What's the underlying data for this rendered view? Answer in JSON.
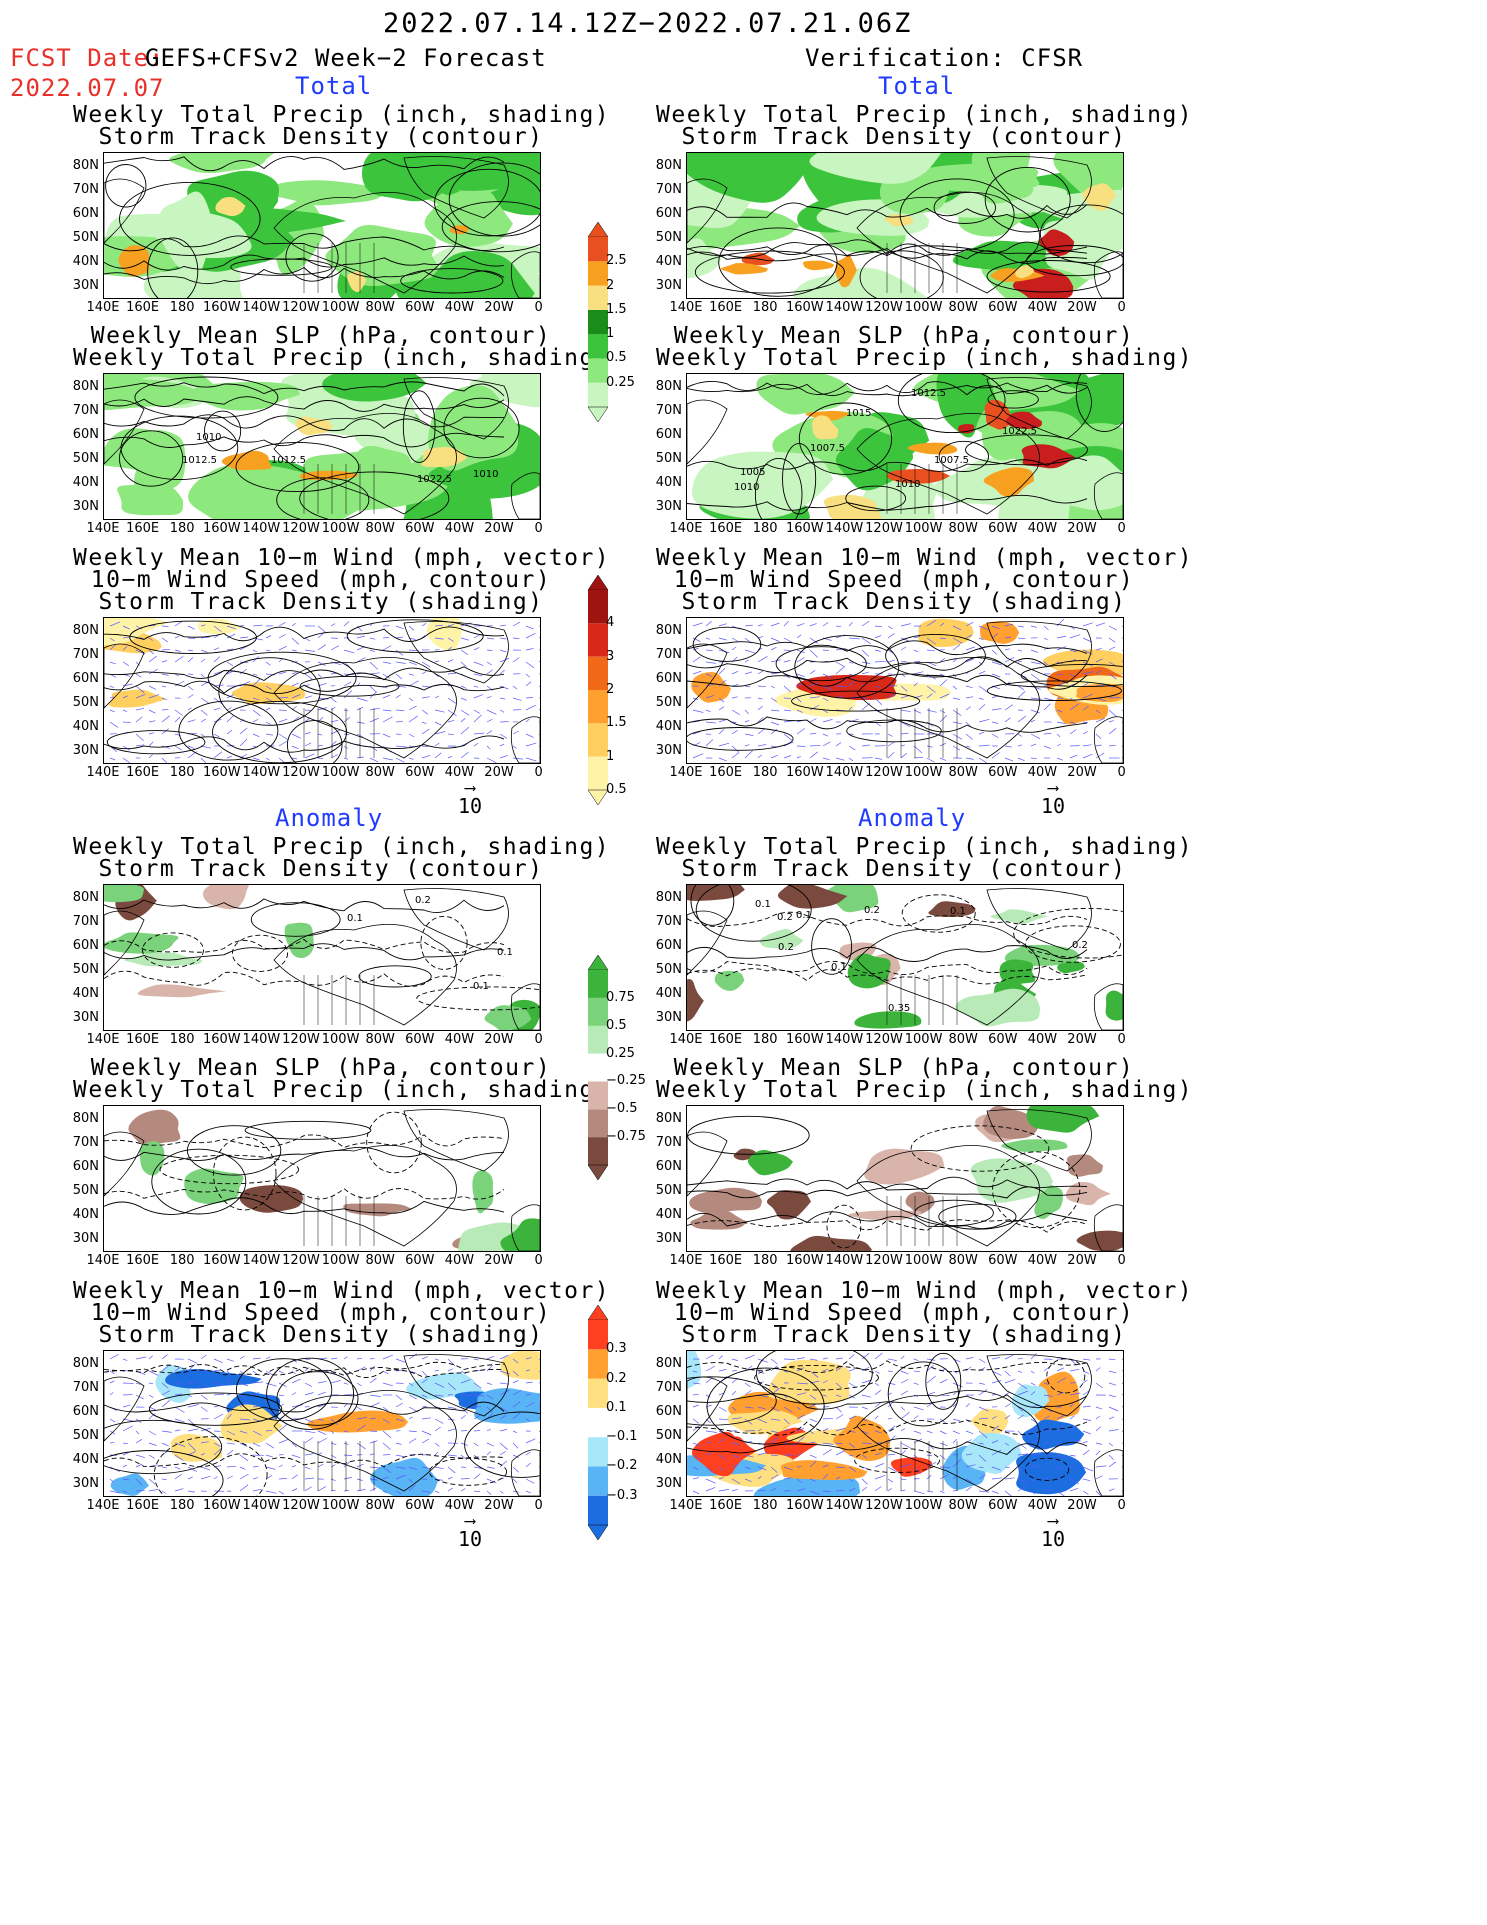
{
  "header": {
    "date_range": "2022.07.14.12Z−2022.07.21.06Z",
    "fcst_label": "FCST Date:",
    "fcst_model": "GEFS+CFSv2 Week−2 Forecast",
    "fcst_date": "2022.07.07",
    "verification": "Verification: CFSR"
  },
  "sections": {
    "total": "Total",
    "anomaly": "Anomaly"
  },
  "panel_titles": {
    "precip_storm": [
      "Weekly Total Precip (inch, shading)",
      "Storm Track Density (contour)"
    ],
    "slp_precip": [
      "Weekly Mean SLP (hPa, contour)",
      "Weekly Total Precip (inch, shading)"
    ],
    "wind_storm": [
      "Weekly Mean 10−m Wind (mph, vector)",
      "10−m Wind Speed (mph, contour)",
      "Storm Track Density (shading)"
    ]
  },
  "axes": {
    "lat": [
      "80N",
      "70N",
      "60N",
      "50N",
      "40N",
      "30N"
    ],
    "lon": [
      "140E",
      "160E",
      "180",
      "160W",
      "140W",
      "120W",
      "100W",
      "80W",
      "60W",
      "40W",
      "20W",
      "0"
    ]
  },
  "vector_ref": "10",
  "colorbars": {
    "precip_total": [
      "2.5",
      "2",
      "1.5",
      "1",
      "0.5",
      "0.25"
    ],
    "storm_total": [
      "4",
      "3",
      "2",
      "1.5",
      "1",
      "0.5"
    ],
    "precip_anom": [
      "0.75",
      "0.5",
      "0.25",
      "−0.25",
      "−0.5",
      "−0.75"
    ],
    "storm_anom": [
      "0.3",
      "0.2",
      "0.1",
      "−0.1",
      "−0.2",
      "−0.3"
    ]
  },
  "contour_labels": {
    "fc_slp_total": [
      "1010",
      "1010",
      "1012.5",
      "1012.5",
      "1022.5"
    ],
    "ob_slp_total": [
      "1010",
      "1007.5",
      "1010",
      "1005",
      "1015",
      "1007.5",
      "1012.5",
      "1022.5"
    ],
    "fc_precip_anom": [
      "0.2",
      "0.1",
      "0.1",
      "0.1"
    ],
    "ob_precip_anom": [
      "0.1",
      "0.1",
      "0.2",
      "0.1",
      "0.2",
      "0.35",
      "0.2",
      "0.1",
      "0.2"
    ]
  },
  "colors": {
    "precip": [
      "#c8f5c0",
      "#8de87d",
      "#3cc43c",
      "#198c19",
      "#f8e080",
      "#f8a020",
      "#e85020",
      "#c81e1e"
    ],
    "storm_total": [
      "#fff3a8",
      "#ffd060",
      "#ffa030",
      "#f06818",
      "#d82818",
      "#9e1410"
    ],
    "precip_anom": [
      "#3cb43c",
      "#7ad27a",
      "#b8eab8",
      "#d8b4aa",
      "#b48a7e",
      "#7a4a3e"
    ],
    "storm_anom": [
      "#ff4020",
      "#ffa030",
      "#ffe080",
      "#a8e6fa",
      "#58b4f5",
      "#1c6ee0"
    ]
  }
}
